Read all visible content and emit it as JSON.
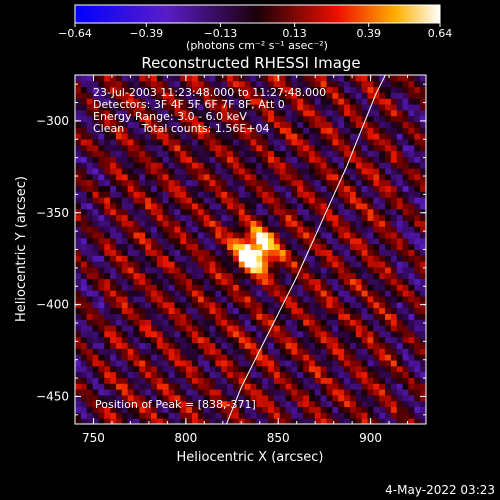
{
  "chart_data": {
    "type": "heatmap",
    "title": "Reconstructed RHESSI Image",
    "xlabel": "Heliocentric X (arcsec)",
    "ylabel": "Heliocentric Y (arcsec)",
    "xlim": [
      740,
      930
    ],
    "ylim": [
      -465,
      -275
    ],
    "x_ticks": [
      750,
      800,
      850,
      900
    ],
    "y_ticks": [
      -300,
      -350,
      -400,
      -450
    ],
    "x_tick_labels": [
      "750",
      "800",
      "850",
      "900"
    ],
    "y_tick_labels": [
      "−300",
      "−350",
      "−400",
      "−450"
    ],
    "info_lines": [
      "23-Jul-2003 11:23:48.000 to 11:27:48.000",
      "Detectors: 3F 4F 5F 6F 7F 8F, Att 0",
      "Energy Range: 3.0 - 6.0 keV",
      "Clean     Total counts: 1.56E+04"
    ],
    "peak_label": "Position of Peak = [838,-371]",
    "peak": [
      838,
      -371
    ],
    "colorbar": {
      "range": [
        -0.64,
        0.64
      ],
      "tick_values": [
        -0.64,
        -0.39,
        -0.13,
        0.13,
        0.39,
        0.64
      ],
      "tick_labels": [
        "−0.64",
        "−0.39",
        "−0.13",
        "0.13",
        "0.39",
        "0.64"
      ],
      "unit": "(photons cm⁻² s⁻¹ asec⁻²)"
    },
    "limb_points": [
      [
        822,
        -465
      ],
      [
        830,
        -445
      ],
      [
        840,
        -425
      ],
      [
        850,
        -405
      ],
      [
        860,
        -385
      ],
      [
        869,
        -365
      ],
      [
        878,
        -345
      ],
      [
        887,
        -325
      ],
      [
        895,
        -305
      ],
      [
        903,
        -285
      ],
      [
        908,
        -275
      ]
    ]
  },
  "footer": {
    "date": "4-May-2022 03:23"
  }
}
